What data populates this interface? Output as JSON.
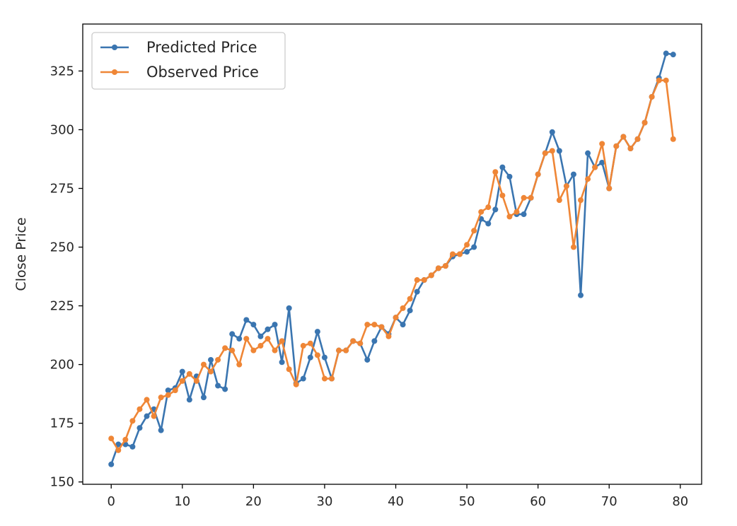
{
  "chart_data": {
    "type": "line",
    "title": "",
    "xlabel": "",
    "ylabel": "Close Price",
    "xlim": [
      -4,
      83
    ],
    "ylim": [
      149,
      345
    ],
    "xticks": [
      0,
      10,
      20,
      30,
      40,
      50,
      60,
      70,
      80
    ],
    "yticks": [
      150,
      175,
      200,
      225,
      250,
      275,
      300,
      325
    ],
    "grid": false,
    "legend_position": "top-left",
    "x": [
      0,
      1,
      2,
      3,
      4,
      5,
      6,
      7,
      8,
      9,
      10,
      11,
      12,
      13,
      14,
      15,
      16,
      17,
      18,
      19,
      20,
      21,
      22,
      23,
      24,
      25,
      26,
      27,
      28,
      29,
      30,
      31,
      32,
      33,
      34,
      35,
      36,
      37,
      38,
      39,
      40,
      41,
      42,
      43,
      44,
      45,
      46,
      47,
      48,
      49,
      50,
      51,
      52,
      53,
      54,
      55,
      56,
      57,
      58,
      59,
      60,
      61,
      62,
      63,
      64,
      65,
      66,
      67,
      68,
      69,
      70,
      71,
      72,
      73,
      74,
      75,
      76,
      77,
      78,
      79
    ],
    "series": [
      {
        "name": "Predicted Price",
        "color": "#3a75b0",
        "values": [
          157.5,
          166,
          166,
          165,
          173,
          178,
          181,
          172,
          189,
          190,
          197,
          185,
          195,
          186,
          202,
          191,
          189.5,
          213,
          211,
          219,
          217,
          212,
          215,
          217,
          201,
          224,
          192,
          194,
          203,
          214,
          203,
          194,
          206,
          206,
          210,
          209,
          202,
          210,
          216,
          213,
          220,
          217,
          223,
          231,
          236,
          238,
          241,
          242,
          246,
          247,
          248,
          250,
          262,
          260,
          266,
          284,
          280,
          264,
          264,
          271,
          281,
          290,
          299,
          291,
          276,
          281,
          229.5,
          290,
          284,
          286,
          275,
          293,
          297,
          292,
          296,
          303,
          314,
          322,
          332.5,
          332
        ]
      },
      {
        "name": "Observed Price",
        "color": "#ef8636",
        "values": [
          168.5,
          163.5,
          168,
          176,
          181,
          185,
          178,
          186,
          187,
          189,
          193,
          196,
          193,
          200,
          197,
          202,
          207,
          206,
          200,
          211,
          206,
          208,
          211,
          206,
          210,
          198,
          191.5,
          208,
          209,
          204,
          194,
          194,
          206,
          206,
          210,
          209,
          217,
          217,
          216,
          212,
          220,
          224,
          228,
          236,
          236,
          238,
          241,
          242,
          247,
          247,
          251,
          257,
          265,
          267,
          282,
          272,
          263,
          265,
          271,
          271,
          281,
          290,
          291,
          270,
          276,
          250,
          270,
          279,
          284,
          294,
          275,
          293,
          297,
          292,
          296,
          303,
          314,
          321,
          321,
          296
        ]
      }
    ]
  }
}
